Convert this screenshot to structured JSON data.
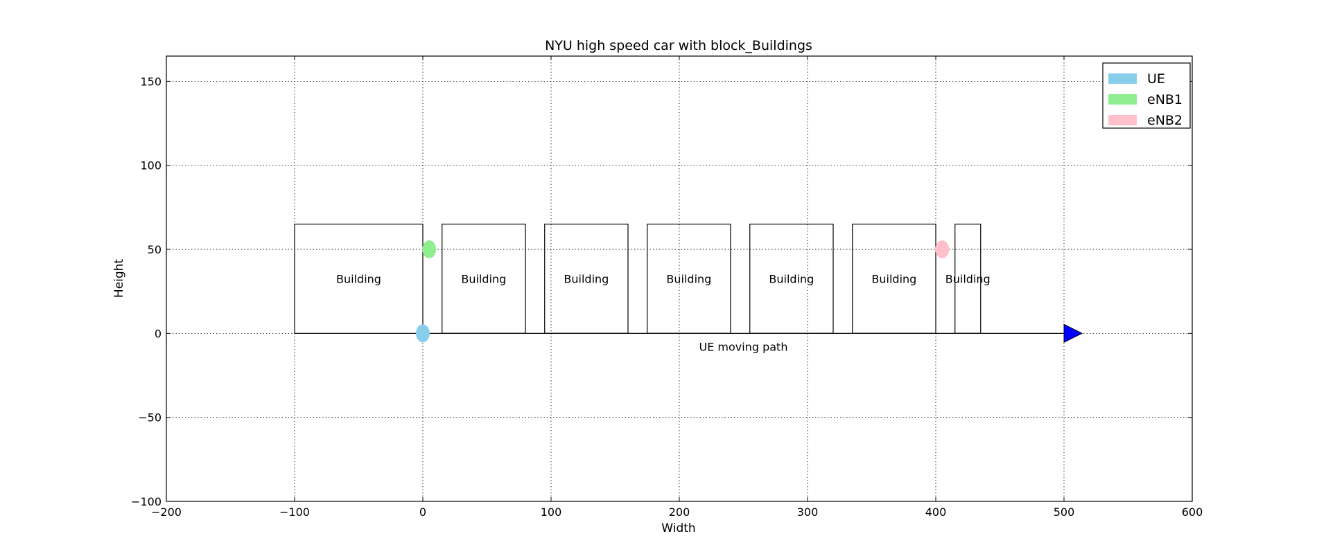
{
  "chart_data": {
    "type": "scatter",
    "title": "NYU high speed car with block_Buildings",
    "xlabel": "Width",
    "ylabel": "Height",
    "xlim": [
      -200,
      600
    ],
    "ylim": [
      -100,
      165
    ],
    "xticks": [
      -200,
      -100,
      0,
      100,
      200,
      300,
      400,
      500,
      600
    ],
    "yticks": [
      -100,
      -50,
      0,
      50,
      100,
      150
    ],
    "xtick_labels": [
      "−200",
      "−100",
      "0",
      "100",
      "200",
      "300",
      "400",
      "500",
      "600"
    ],
    "ytick_labels": [
      "−100",
      "−50",
      "0",
      "50",
      "100",
      "150"
    ],
    "grid": true,
    "legend_position": "top-right",
    "series": [
      {
        "name": "UE",
        "color": "#87CEEB",
        "x": 0,
        "y": 0
      },
      {
        "name": "eNB1",
        "color": "#90EE90",
        "x": 5,
        "y": 50
      },
      {
        "name": "eNB2",
        "color": "#FFC0CB",
        "x": 405,
        "y": 50
      }
    ],
    "buildings": [
      {
        "label": "Building",
        "x0": -100,
        "x1": 0,
        "y0": 0,
        "y1": 65
      },
      {
        "label": "Building",
        "x0": 15,
        "x1": 80,
        "y0": 0,
        "y1": 65
      },
      {
        "label": "Building",
        "x0": 95,
        "x1": 160,
        "y0": 0,
        "y1": 65
      },
      {
        "label": "Building",
        "x0": 175,
        "x1": 240,
        "y0": 0,
        "y1": 65
      },
      {
        "label": "Building",
        "x0": 255,
        "x1": 320,
        "y0": 0,
        "y1": 65
      },
      {
        "label": "Building",
        "x0": 335,
        "x1": 400,
        "y0": 0,
        "y1": 65
      },
      {
        "label": "Building",
        "x0": 415,
        "x1": 435,
        "y0": 0,
        "y1": 65
      }
    ],
    "path": {
      "label": "UE moving path",
      "x_start": 0,
      "x_end": 500,
      "y": 0,
      "arrow_color": "#0000FF"
    }
  }
}
